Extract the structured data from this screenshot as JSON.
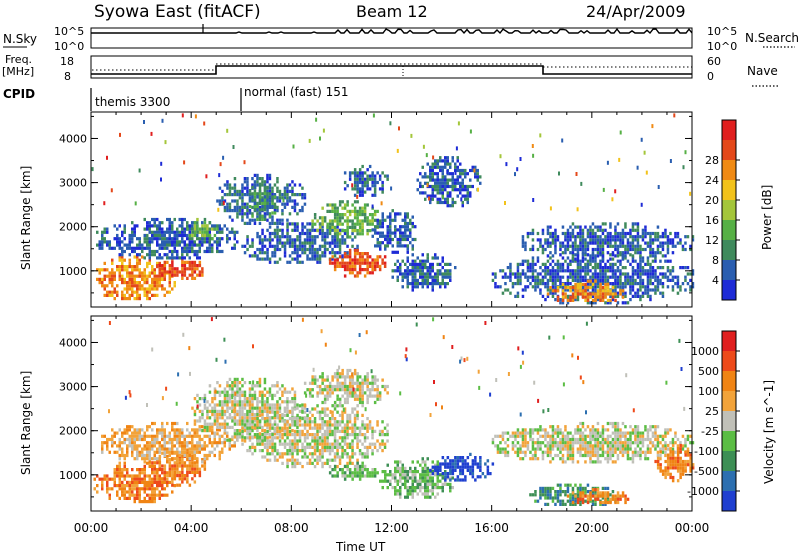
{
  "header": {
    "station": "Syowa East (fitACF)",
    "beam": "Beam 12",
    "date": "24/Apr/2009"
  },
  "nsky_panel": {
    "left_label": "N.Sky",
    "right_label": "N.Search",
    "tick_top": "10^5",
    "tick_bottom": "10^0",
    "right_tick_top": "10^5",
    "right_tick_bottom": "10^0"
  },
  "freq_panel": {
    "left_label_1": "Freq.",
    "left_label_2": "[MHz]",
    "tick_top": "18",
    "tick_bottom": "8",
    "right_label": "Nave",
    "right_tick_top": "60",
    "right_tick_bottom": "0"
  },
  "cpid_panel": {
    "label": "CPID",
    "modes": [
      {
        "name": "themis 3300",
        "start_hour": 0
      },
      {
        "name": "normal (fast) 151",
        "start_hour": 6
      }
    ]
  },
  "chart_data": [
    {
      "type": "heatmap",
      "quantity": "Power",
      "ylabel": "Slant Range [km]",
      "ylim": [
        180,
        4600
      ],
      "yticks": [
        "1000",
        "2000",
        "3000",
        "4000"
      ],
      "xlim": [
        0,
        24
      ],
      "colorbar": {
        "label": "Power [dB]",
        "ticks": [
          "4",
          "8",
          "12",
          "16",
          "20",
          "24",
          "28"
        ],
        "colors": [
          "#1e2bd6",
          "#2a5eb0",
          "#3f8a5c",
          "#56b045",
          "#a4c63a",
          "#f2c21b",
          "#f08a14",
          "#e4481a",
          "#e01f1f"
        ]
      },
      "regions": [
        {
          "t0": 0.1,
          "t1": 3.3,
          "r0": 350,
          "r1": 1350,
          "level": 6
        },
        {
          "t0": 2.5,
          "t1": 4.6,
          "r0": 800,
          "r1": 1300,
          "level": 7
        },
        {
          "t0": 0.2,
          "t1": 5.8,
          "r0": 1300,
          "r1": 2200,
          "level": 1
        },
        {
          "t0": 3.8,
          "t1": 5.0,
          "r0": 1700,
          "r1": 2200,
          "level": 3
        },
        {
          "t0": 5.0,
          "t1": 8.5,
          "r0": 2100,
          "r1": 3200,
          "level": 1
        },
        {
          "t0": 6.2,
          "t1": 7.4,
          "r0": 2200,
          "r1": 3000,
          "level": 2
        },
        {
          "t0": 6.0,
          "t1": 10.6,
          "r0": 1200,
          "r1": 2100,
          "level": 1
        },
        {
          "t0": 8.8,
          "t1": 11.5,
          "r0": 1800,
          "r1": 2600,
          "level": 3
        },
        {
          "t0": 9.5,
          "t1": 11.8,
          "r0": 900,
          "r1": 1500,
          "level": 7
        },
        {
          "t0": 10.0,
          "t1": 11.8,
          "r0": 2700,
          "r1": 3400,
          "level": 1
        },
        {
          "t0": 11.2,
          "t1": 13.0,
          "r0": 1400,
          "r1": 2400,
          "level": 1
        },
        {
          "t0": 12.0,
          "t1": 14.5,
          "r0": 600,
          "r1": 1400,
          "level": 1
        },
        {
          "t0": 13.0,
          "t1": 15.5,
          "r0": 2500,
          "r1": 3600,
          "level": 1
        },
        {
          "t0": 16.0,
          "t1": 24.0,
          "r0": 300,
          "r1": 1400,
          "level": 1
        },
        {
          "t0": 18.2,
          "t1": 21.3,
          "r0": 300,
          "r1": 800,
          "level": 6
        },
        {
          "t0": 17.0,
          "t1": 24.0,
          "r0": 1300,
          "r1": 2100,
          "level": 1
        }
      ]
    },
    {
      "type": "heatmap",
      "quantity": "Velocity",
      "ylabel": "Slant Range [km]",
      "ylim": [
        180,
        4600
      ],
      "yticks": [
        "1000",
        "2000",
        "3000",
        "4000"
      ],
      "xlim": [
        0,
        24
      ],
      "xticks": [
        "00:00",
        "04:00",
        "08:00",
        "12:00",
        "16:00",
        "20:00",
        "00:00"
      ],
      "xlabel": "Time UT",
      "colorbar": {
        "label": "Velocity [m s^-1]",
        "ticks": [
          "1000",
          "500",
          "100",
          "25",
          "-25",
          "-100",
          "-500",
          "-1000"
        ],
        "colors": [
          "#1f3fd0",
          "#2c6fb0",
          "#3d8f55",
          "#5bbd44",
          "#c0c0b8",
          "#f2a33a",
          "#f08414",
          "#ee4a1a",
          "#e01f1f"
        ]
      },
      "regions": [
        {
          "t0": 0.1,
          "t1": 3.3,
          "r0": 400,
          "r1": 1300,
          "level": 6
        },
        {
          "t0": 2.4,
          "t1": 4.6,
          "r0": 800,
          "r1": 1600,
          "level": 6
        },
        {
          "t0": 0.3,
          "t1": 5.8,
          "r0": 1300,
          "r1": 2200,
          "level": 5
        },
        {
          "t0": 4.0,
          "t1": 8.5,
          "r0": 1800,
          "r1": 3200,
          "level": 4
        },
        {
          "t0": 6.0,
          "t1": 11.8,
          "r0": 1200,
          "r1": 2600,
          "level": 4
        },
        {
          "t0": 8.5,
          "t1": 11.8,
          "r0": 2600,
          "r1": 3400,
          "level": 4
        },
        {
          "t0": 9.5,
          "t1": 11.5,
          "r0": 900,
          "r1": 1300,
          "level": 3
        },
        {
          "t0": 11.5,
          "t1": 14.5,
          "r0": 500,
          "r1": 1400,
          "level": 3
        },
        {
          "t0": 13.5,
          "t1": 16.0,
          "r0": 900,
          "r1": 1500,
          "level": 0
        },
        {
          "t0": 16.0,
          "t1": 24.0,
          "r0": 1300,
          "r1": 2200,
          "level": 4
        },
        {
          "t0": 17.5,
          "t1": 21.0,
          "r0": 300,
          "r1": 800,
          "level": 2
        },
        {
          "t0": 19.0,
          "t1": 21.5,
          "r0": 350,
          "r1": 700,
          "level": 6
        },
        {
          "t0": 22.5,
          "t1": 24.0,
          "r0": 900,
          "r1": 1700,
          "level": 6
        }
      ]
    }
  ]
}
